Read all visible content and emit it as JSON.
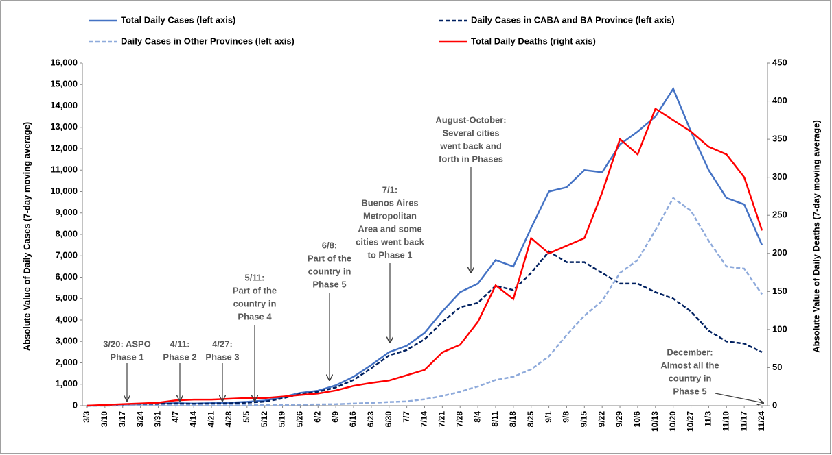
{
  "chart_data": {
    "type": "line",
    "y_label": "Absolute Value of Daily Cases (7-day moving average)",
    "y2_label": "Absolute Value of Daily Deaths (7-day moving average)",
    "categories": [
      "3/3",
      "3/10",
      "3/17",
      "3/24",
      "3/31",
      "4/7",
      "4/14",
      "4/21",
      "4/28",
      "5/5",
      "5/12",
      "5/19",
      "5/26",
      "6/2",
      "6/9",
      "6/16",
      "6/23",
      "6/30",
      "7/7",
      "7/14",
      "7/21",
      "7/28",
      "8/4",
      "8/11",
      "8/18",
      "8/25",
      "9/1",
      "9/8",
      "9/15",
      "9/22",
      "9/29",
      "10/6",
      "10/13",
      "10/20",
      "10/27",
      "11/3",
      "11/10",
      "11/17",
      "11/24"
    ],
    "series": [
      {
        "name": "Total Daily Cases (left axis)",
        "color": "#4472c4",
        "dash": false,
        "values": [
          0,
          10,
          50,
          90,
          100,
          120,
          100,
          120,
          140,
          180,
          240,
          400,
          600,
          700,
          950,
          1350,
          1900,
          2500,
          2800,
          3400,
          4400,
          5300,
          5700,
          6800,
          6500,
          8300,
          10000,
          10200,
          11000,
          10900,
          12200,
          12800,
          13500,
          14800,
          12800,
          11000,
          9700,
          9400,
          7500
        ]
      },
      {
        "name": "Daily Cases in CABA and BA Province (left axis)",
        "color": "#002060",
        "dash": true,
        "values": [
          0,
          10,
          45,
          80,
          90,
          100,
          90,
          100,
          110,
          140,
          190,
          340,
          550,
          650,
          850,
          1200,
          1750,
          2350,
          2600,
          3100,
          3900,
          4600,
          4800,
          5600,
          5400,
          6200,
          7200,
          6700,
          6700,
          6200,
          5700,
          5700,
          5300,
          5000,
          4400,
          3500,
          3000,
          2900,
          2500
        ]
      },
      {
        "name": "Daily Cases in Other Provinces (left axis)",
        "color": "#8eaadb",
        "dash": true,
        "values": [
          0,
          0,
          5,
          10,
          10,
          15,
          15,
          15,
          20,
          20,
          30,
          40,
          50,
          60,
          70,
          100,
          130,
          170,
          200,
          300,
          450,
          650,
          900,
          1200,
          1350,
          1700,
          2300,
          3300,
          4200,
          4900,
          6200,
          6800,
          8200,
          9700,
          9100,
          7700,
          6500,
          6400,
          5200
        ]
      },
      {
        "name": "Total Daily Deaths (right axis)",
        "color": "#ff0000",
        "dash": false,
        "axis": "y2",
        "values": [
          0,
          1,
          2,
          3,
          4,
          7,
          8,
          8,
          9,
          10,
          10,
          12,
          14,
          16,
          20,
          26,
          30,
          33,
          40,
          47,
          70,
          80,
          110,
          158,
          140,
          220,
          200,
          210,
          220,
          280,
          350,
          330,
          390,
          375,
          360,
          340,
          330,
          300,
          230
        ]
      }
    ],
    "ylim": [
      0,
      16000
    ],
    "yticks": [
      0,
      {
        "value": 1000,
        "label": "1,000"
      },
      {
        "value": 2000,
        "label": "2,000"
      },
      {
        "value": 3000,
        "label": "3,000"
      },
      {
        "value": 4000,
        "label": "4,000"
      },
      {
        "value": 5000,
        "label": "5,000"
      },
      {
        "value": 6000,
        "label": "6,000"
      },
      {
        "value": 7000,
        "label": "7,000"
      },
      {
        "value": 8000,
        "label": "8,000"
      },
      {
        "value": 9000,
        "label": "9,000"
      },
      {
        "value": 10000,
        "label": "10,000"
      },
      {
        "value": 11000,
        "label": "11,000"
      },
      {
        "value": 12000,
        "label": "12,000"
      },
      {
        "value": 13000,
        "label": "13,000"
      },
      {
        "value": 14000,
        "label": "14,000"
      },
      {
        "value": 15000,
        "label": "15,000"
      },
      {
        "value": 16000,
        "label": "16,000"
      }
    ],
    "y2lim": [
      0,
      450
    ],
    "y2ticks": [
      0,
      50,
      100,
      150,
      200,
      250,
      300,
      350,
      400,
      450
    ],
    "grid": false,
    "legend": "top",
    "annotations": [
      {
        "lines": [
          "3/20: ASPO",
          "Phase 1"
        ]
      },
      {
        "lines": [
          "4/11:",
          "Phase 2"
        ]
      },
      {
        "lines": [
          "4/27:",
          "Phase 3"
        ]
      },
      {
        "lines": [
          "5/11:",
          "Part of the",
          "country in",
          "Phase 4"
        ]
      },
      {
        "lines": [
          "6/8:",
          "Part of the",
          "country in",
          "Phase 5"
        ]
      },
      {
        "lines": [
          "7/1:",
          "Buenos Aires",
          "Metropolitan",
          "Area and some",
          "cities went back",
          "to Phase 1"
        ]
      },
      {
        "lines": [
          "August-October:",
          "Several cities",
          "went back and",
          "forth in Phases"
        ]
      },
      {
        "lines": [
          "December:",
          "Almost all the",
          "country in",
          "Phase 5"
        ]
      }
    ]
  }
}
